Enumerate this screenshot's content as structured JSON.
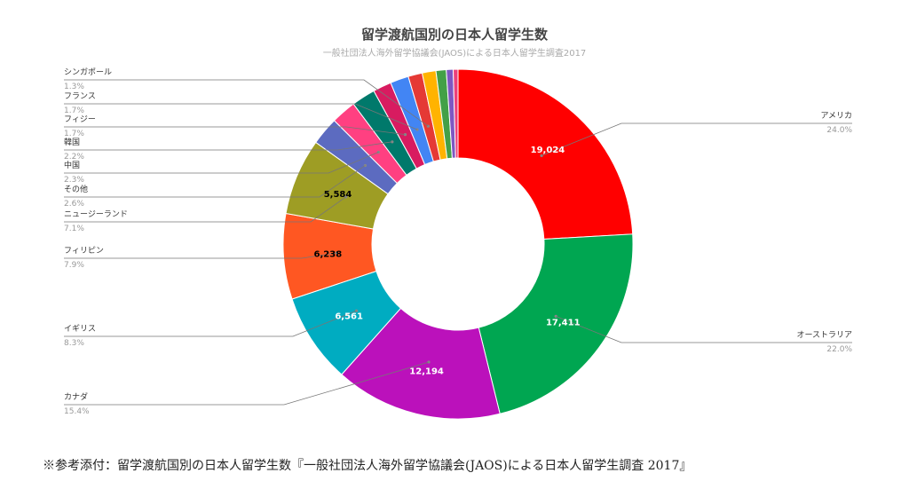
{
  "chart_data": {
    "type": "pie",
    "title": "留学渡航国別の日本人留学生数",
    "subtitle": "一般社団法人海外留学協議会(JAOS)による日本人留学生調査2017",
    "slices": [
      {
        "label": "アメリカ",
        "value": 19024,
        "value_label": "19,024",
        "percent": "24.0%",
        "color": "#ff0000"
      },
      {
        "label": "オーストラリア",
        "value": 17411,
        "value_label": "17,411",
        "percent": "22.0%",
        "color": "#00a651"
      },
      {
        "label": "カナダ",
        "value": 12194,
        "value_label": "12,194",
        "percent": "15.4%",
        "color": "#bb11bb"
      },
      {
        "label": "イギリス",
        "value": 6561,
        "value_label": "6,561",
        "percent": "8.3%",
        "color": "#00acc1"
      },
      {
        "label": "フィリピン",
        "value": 6238,
        "value_label": "6,238",
        "percent": "7.9%",
        "color": "#ff5722"
      },
      {
        "label": "ニュージーランド",
        "value": 5584,
        "value_label": "5,584",
        "percent": "7.1%",
        "color": "#9e9d24"
      },
      {
        "label": "その他",
        "value": 2060,
        "value_label": "",
        "percent": "2.6%",
        "color": "#5c6bc0"
      },
      {
        "label": "中国",
        "value": 1820,
        "value_label": "",
        "percent": "2.3%",
        "color": "#ff4081"
      },
      {
        "label": "韓国",
        "value": 1740,
        "value_label": "",
        "percent": "2.2%",
        "color": "#00796b"
      },
      {
        "label": "フィジー",
        "value": 1345,
        "value_label": "",
        "percent": "1.7%",
        "color": "#d81b60"
      },
      {
        "label": "フランス",
        "value": 1345,
        "value_label": "",
        "percent": "1.7%",
        "color": "#4285f4"
      },
      {
        "label": "シンガポール",
        "value": 1030,
        "value_label": "",
        "percent": "1.3%",
        "color": "#e53935"
      },
      {
        "label": "",
        "value": 1000,
        "value_label": "",
        "percent": "",
        "color": "#ffb300"
      },
      {
        "label": "",
        "value": 750,
        "value_label": "",
        "percent": "",
        "color": "#43a047"
      },
      {
        "label": "",
        "value": 500,
        "value_label": "",
        "percent": "",
        "color": "#7e57c2"
      },
      {
        "label": "",
        "value": 350,
        "value_label": "",
        "percent": "",
        "color": "#ec407a"
      }
    ]
  },
  "footnote": "※参考添付：留学渡航国別の日本人留学生数『一般社団法人海外留学協議会(JAOS)による日本人留学生調査 2017』"
}
